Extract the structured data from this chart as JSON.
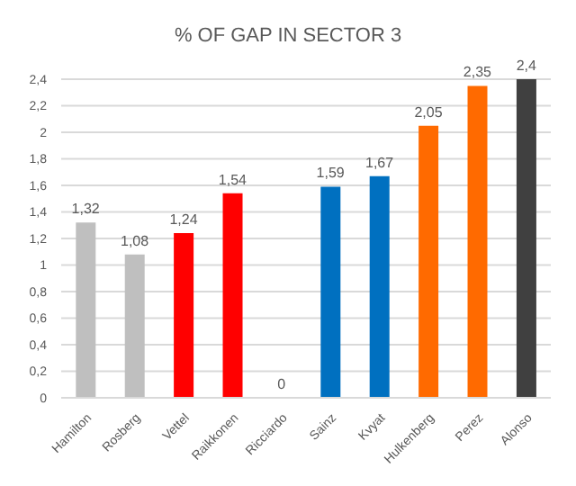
{
  "chart_data": {
    "type": "bar",
    "title": "% OF GAP IN SECTOR 3",
    "categories": [
      "Hamilton",
      "Rosberg",
      "Vettel",
      "Raikkonen",
      "Ricciardo",
      "Sainz",
      "Kvyat",
      "Hulkenberg",
      "Perez",
      "Alonso"
    ],
    "values": [
      1.32,
      1.08,
      1.24,
      1.54,
      0,
      1.59,
      1.67,
      2.05,
      2.35,
      2.4
    ],
    "value_labels": [
      "1,32",
      "1,08",
      "1,24",
      "1,54",
      "0",
      "1,59",
      "1,67",
      "2,05",
      "2,35",
      "2,4"
    ],
    "colors": [
      "#bfbfbf",
      "#bfbfbf",
      "#ff0000",
      "#ff0000",
      "#bfbfbf",
      "#0070c0",
      "#0070c0",
      "#ff6a00",
      "#ff6a00",
      "#404040"
    ],
    "ylim": [
      0,
      2.4
    ],
    "yticks": [
      0,
      {
        "value": 0.2,
        "label": "0,2"
      },
      {
        "value": 0.4,
        "label": "0,4"
      },
      {
        "value": 0.6,
        "label": "0,6"
      },
      {
        "value": 0.8,
        "label": "0,8"
      },
      1,
      {
        "value": 1.2,
        "label": "1,2"
      },
      {
        "value": 1.4,
        "label": "1,4"
      },
      {
        "value": 1.6,
        "label": "1,6"
      },
      {
        "value": 1.8,
        "label": "1,8"
      },
      2,
      {
        "value": 2.2,
        "label": "2,2"
      },
      {
        "value": 2.4,
        "label": "2,4"
      }
    ],
    "grid": "y"
  }
}
